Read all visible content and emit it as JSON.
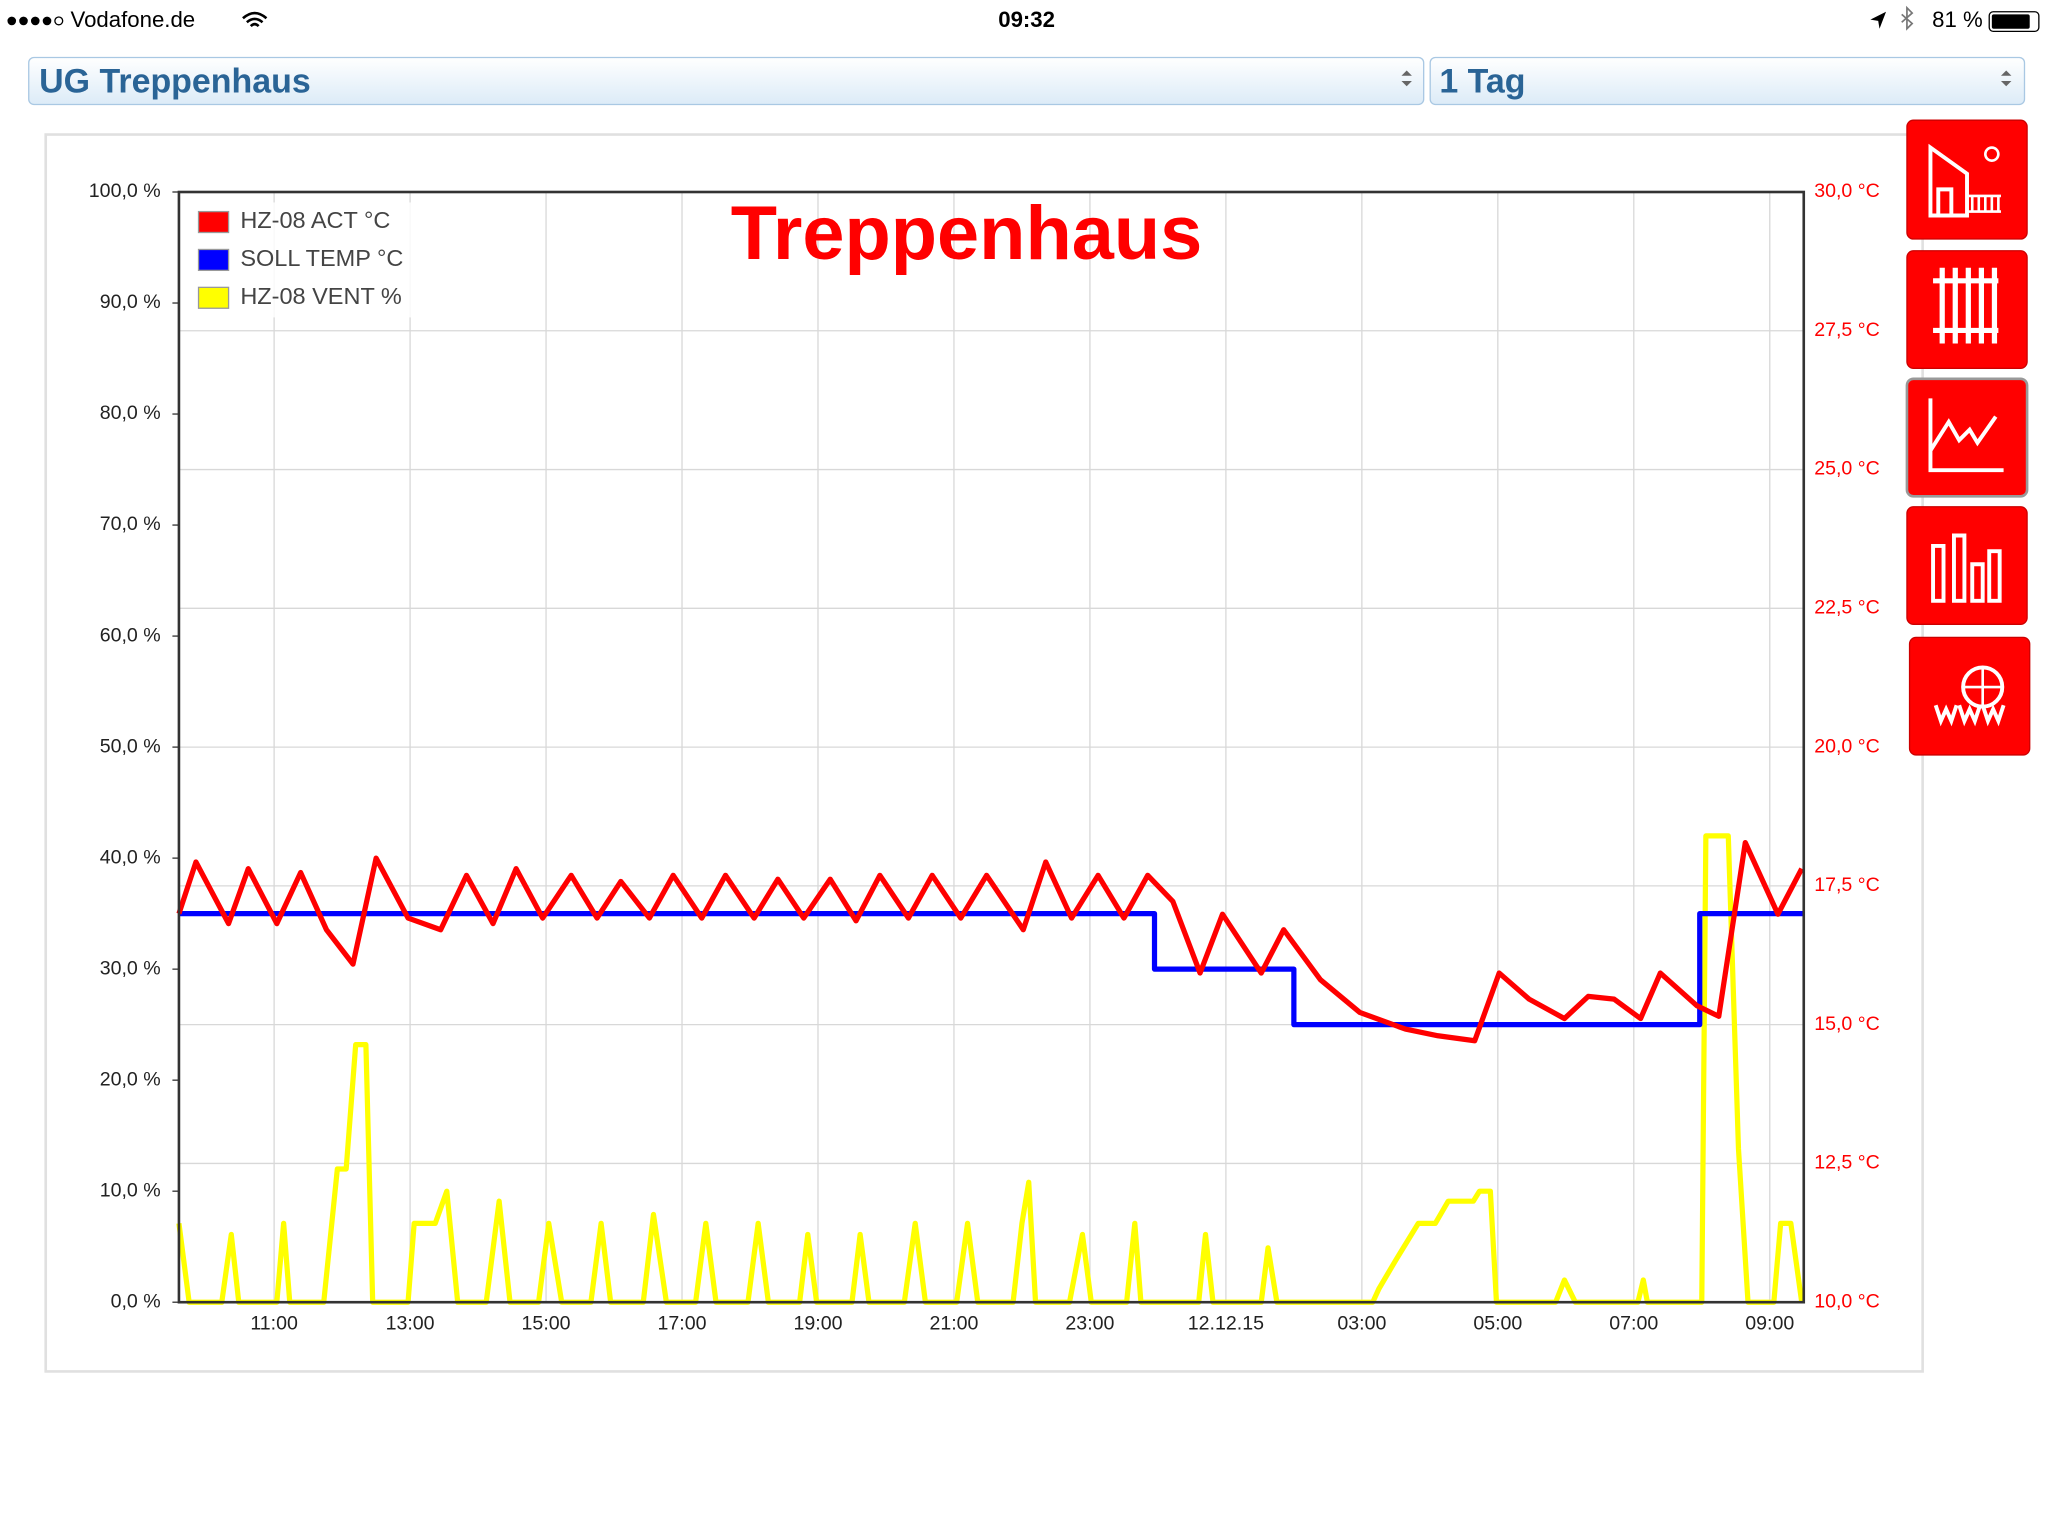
{
  "status_bar": {
    "carrier": "Vodafone.de",
    "time": "09:32",
    "battery": "81 %"
  },
  "selectors": {
    "room": "UG Treppenhaus",
    "range": "1 Tag"
  },
  "chart_data": {
    "type": "line",
    "title": "Treppenhaus",
    "xlim": [
      9.6,
      33.5
    ],
    "xticks": [
      {
        "value": 11,
        "label": "11:00"
      },
      {
        "value": 13,
        "label": "13:00"
      },
      {
        "value": 15,
        "label": "15:00"
      },
      {
        "value": 17,
        "label": "17:00"
      },
      {
        "value": 19,
        "label": "19:00"
      },
      {
        "value": 21,
        "label": "21:00"
      },
      {
        "value": 23,
        "label": "23:00"
      },
      {
        "value": 25,
        "label": "12.12.15"
      },
      {
        "value": 27,
        "label": "03:00"
      },
      {
        "value": 29,
        "label": "05:00"
      },
      {
        "value": 31,
        "label": "07:00"
      },
      {
        "value": 33,
        "label": "09:00"
      }
    ],
    "ylim": [
      0,
      100
    ],
    "yticks": [
      {
        "value": 0,
        "label": "0,0 %"
      },
      {
        "value": 10,
        "label": "10,0 %"
      },
      {
        "value": 20,
        "label": "20,0 %"
      },
      {
        "value": 30,
        "label": "30,0 %"
      },
      {
        "value": 40,
        "label": "40,0 %"
      },
      {
        "value": 50,
        "label": "50,0 %"
      },
      {
        "value": 60,
        "label": "60,0 %"
      },
      {
        "value": 70,
        "label": "70,0 %"
      },
      {
        "value": 80,
        "label": "80,0 %"
      },
      {
        "value": 90,
        "label": "90,0 %"
      },
      {
        "value": 100,
        "label": "100,0 %"
      }
    ],
    "y2lim": [
      10,
      30
    ],
    "y2ticks": [
      {
        "value": 10,
        "label": "10,0 °C"
      },
      {
        "value": 12.5,
        "label": "12,5 °C"
      },
      {
        "value": 15,
        "label": "15,0 °C"
      },
      {
        "value": 17.5,
        "label": "17,5 °C"
      },
      {
        "value": 20,
        "label": "20,0 °C"
      },
      {
        "value": 22.5,
        "label": "22,5 °C"
      },
      {
        "value": 25,
        "label": "25,0 °C"
      },
      {
        "value": 27.5,
        "label": "27,5 °C"
      },
      {
        "value": 30,
        "label": "30,0 °C"
      }
    ],
    "y2color": "#ff0000",
    "grid": true,
    "legend": "upper left",
    "series": [
      {
        "name": "HZ-08 ACT °C",
        "color": "#ff0000",
        "axis": "y2",
        "x": [
          9.6,
          9.85,
          10.33,
          10.62,
          11.04,
          11.39,
          11.77,
          12.16,
          12.5,
          12.97,
          13.45,
          13.83,
          14.22,
          14.56,
          14.95,
          15.37,
          15.75,
          16.1,
          16.52,
          16.87,
          17.29,
          17.64,
          18.06,
          18.41,
          18.79,
          19.18,
          19.56,
          19.91,
          20.33,
          20.68,
          21.1,
          21.48,
          22.02,
          22.35,
          22.73,
          23.12,
          23.5,
          23.85,
          24.22,
          24.62,
          24.95,
          25.52,
          25.85,
          26.39,
          26.97,
          27.64,
          28.12,
          28.66,
          29.02,
          29.46,
          29.98,
          30.33,
          30.71,
          31.1,
          31.39,
          31.93,
          32.25,
          32.64,
          33.12,
          33.47
        ],
        "values": [
          17.0,
          17.93,
          16.82,
          17.81,
          16.82,
          17.74,
          16.71,
          16.09,
          18.0,
          16.92,
          16.71,
          17.69,
          16.82,
          17.81,
          16.92,
          17.69,
          16.92,
          17.58,
          16.92,
          17.69,
          16.92,
          17.69,
          16.92,
          17.62,
          16.92,
          17.62,
          16.87,
          17.69,
          16.92,
          17.69,
          16.92,
          17.69,
          16.71,
          17.93,
          16.92,
          17.69,
          16.92,
          17.69,
          17.22,
          15.93,
          16.99,
          15.93,
          16.71,
          15.81,
          15.22,
          14.92,
          14.8,
          14.71,
          15.93,
          15.46,
          15.11,
          15.51,
          15.46,
          15.11,
          15.93,
          15.34,
          15.15,
          18.28,
          16.99,
          17.81
        ]
      },
      {
        "name": "SOLL TEMP °C",
        "color": "#0000ff",
        "axis": "y2",
        "x": [
          9.6,
          23.95,
          23.95,
          26.0,
          26.0,
          31.97,
          31.97,
          33.5
        ],
        "values": [
          17,
          17,
          16,
          16,
          15,
          15,
          17,
          17
        ]
      },
      {
        "name": "HZ-08 VENT %",
        "color": "#ffff00",
        "x": [
          9.6,
          9.75,
          10.23,
          10.37,
          10.48,
          11.04,
          11.14,
          11.23,
          11.73,
          11.93,
          12.06,
          12.2,
          12.35,
          12.45,
          12.97,
          13.06,
          13.37,
          13.54,
          13.7,
          14.12,
          14.31,
          14.47,
          14.89,
          15.04,
          15.23,
          15.66,
          15.81,
          15.95,
          16.43,
          16.58,
          16.77,
          17.2,
          17.35,
          17.5,
          17.97,
          18.12,
          18.27,
          18.73,
          18.85,
          18.98,
          19.5,
          19.62,
          19.75,
          20.27,
          20.43,
          20.58,
          21.04,
          21.2,
          21.35,
          21.87,
          22.0,
          22.1,
          22.2,
          22.7,
          22.89,
          23.02,
          23.54,
          23.66,
          23.75,
          24.6,
          24.7,
          24.81,
          25.52,
          25.62,
          25.75,
          27.16,
          27.25,
          27.5,
          27.83,
          28.08,
          28.27,
          28.64,
          28.73,
          28.89,
          28.98,
          29.85,
          29.98,
          30.14,
          31.06,
          31.14,
          31.2,
          32.0,
          32.06,
          32.39,
          32.54,
          32.68,
          33.06,
          33.16,
          33.31,
          33.47
        ],
        "values": [
          7.1,
          0,
          0,
          6.1,
          0,
          0,
          7.1,
          0,
          0,
          12,
          12,
          23.2,
          23.2,
          0,
          0,
          7.1,
          7.1,
          10,
          0,
          0,
          9.1,
          0,
          0,
          7.1,
          0,
          0,
          7.1,
          0,
          0,
          7.9,
          0,
          0,
          7.1,
          0,
          0,
          7.1,
          0,
          0,
          6.1,
          0,
          0,
          6.1,
          0,
          0,
          7.1,
          0,
          0,
          7.1,
          0,
          0,
          7.1,
          10.8,
          0,
          0,
          6.1,
          0,
          0,
          7.1,
          0,
          0,
          6.1,
          0,
          0,
          4.9,
          0,
          0,
          1.2,
          3.8,
          7.1,
          7.1,
          9.1,
          9.1,
          10,
          10,
          0,
          0,
          2,
          0,
          0,
          2,
          0,
          0,
          42,
          42,
          13.8,
          0,
          0,
          7.1,
          7.1,
          0
        ]
      }
    ]
  }
}
